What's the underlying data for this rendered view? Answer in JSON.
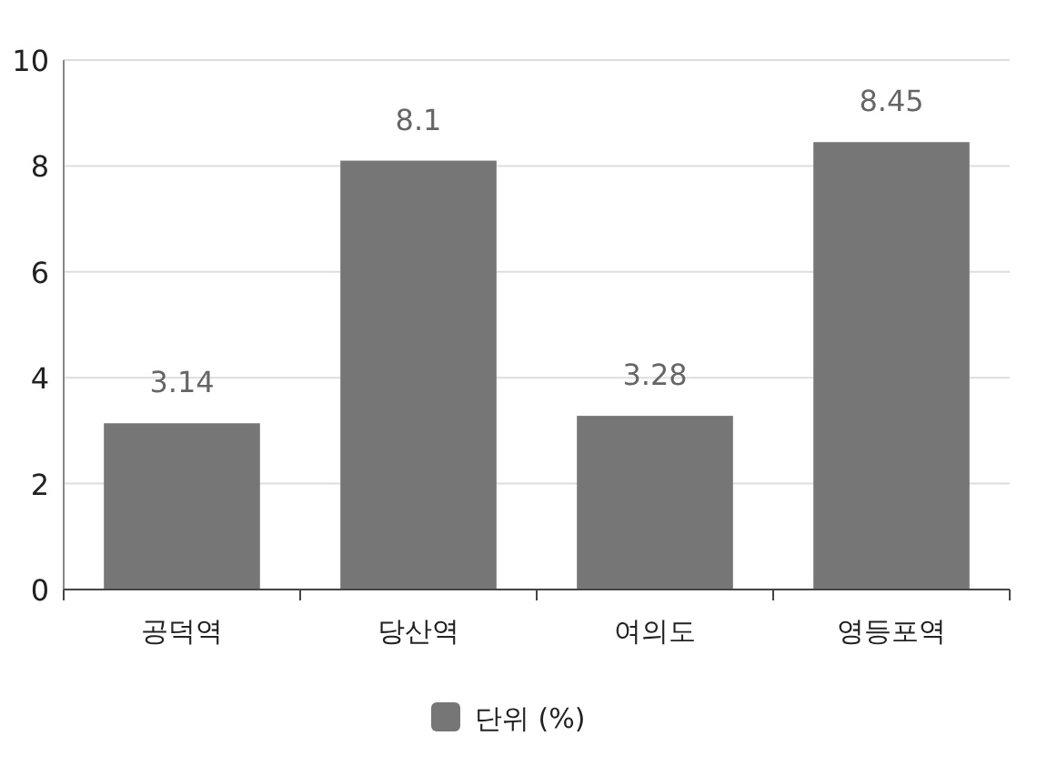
{
  "chart_data": {
    "type": "bar",
    "categories": [
      "공덕역",
      "당산역",
      "여의도",
      "영등포역"
    ],
    "series": [
      {
        "name": "단위 (%)",
        "color": "#767676",
        "values": [
          3.14,
          8.1,
          3.28,
          8.45
        ]
      }
    ],
    "ylim": [
      0,
      10
    ],
    "yticks": [
      0,
      2,
      4,
      6,
      8,
      10
    ],
    "grid": "y",
    "legend": "bottom",
    "data_labels": true
  }
}
